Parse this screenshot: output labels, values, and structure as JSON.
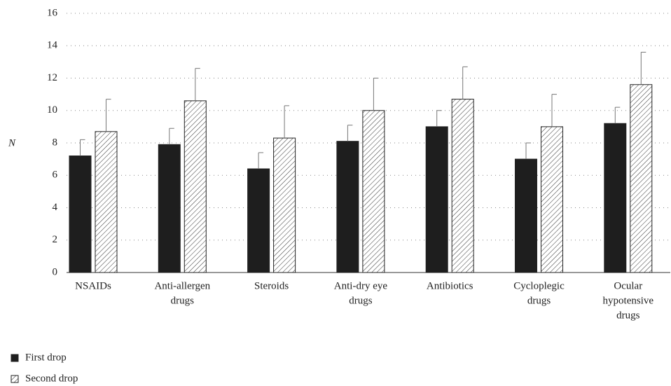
{
  "chart_data": {
    "type": "bar",
    "ylabel": "N",
    "categories": [
      [
        "NSAIDs"
      ],
      [
        "Anti-allergen",
        "drugs"
      ],
      [
        "Steroids"
      ],
      [
        "Anti-dry eye",
        "drugs"
      ],
      [
        "Antibiotics"
      ],
      [
        "Cycloplegic",
        "drugs"
      ],
      [
        "Ocular",
        "hypotensive",
        "drugs"
      ]
    ],
    "series": [
      {
        "name": "First drop",
        "color": "#1e1e1e",
        "pattern": "solid",
        "values": [
          7.2,
          7.9,
          6.4,
          8.1,
          9.0,
          7.0,
          9.2
        ],
        "errors": [
          1.0,
          1.0,
          1.0,
          1.0,
          1.0,
          1.0,
          1.0
        ]
      },
      {
        "name": "Second drop",
        "color": "#1e1e1e",
        "pattern": "hatch",
        "values": [
          8.7,
          10.6,
          8.3,
          10.0,
          10.7,
          9.0,
          11.6
        ],
        "errors": [
          2.0,
          2.0,
          2.0,
          2.0,
          2.0,
          2.0,
          2.0
        ]
      }
    ],
    "ylim": [
      0,
      16
    ],
    "yticks": [
      0,
      2,
      4,
      6,
      8,
      10,
      12,
      14,
      16
    ],
    "grid": true
  }
}
